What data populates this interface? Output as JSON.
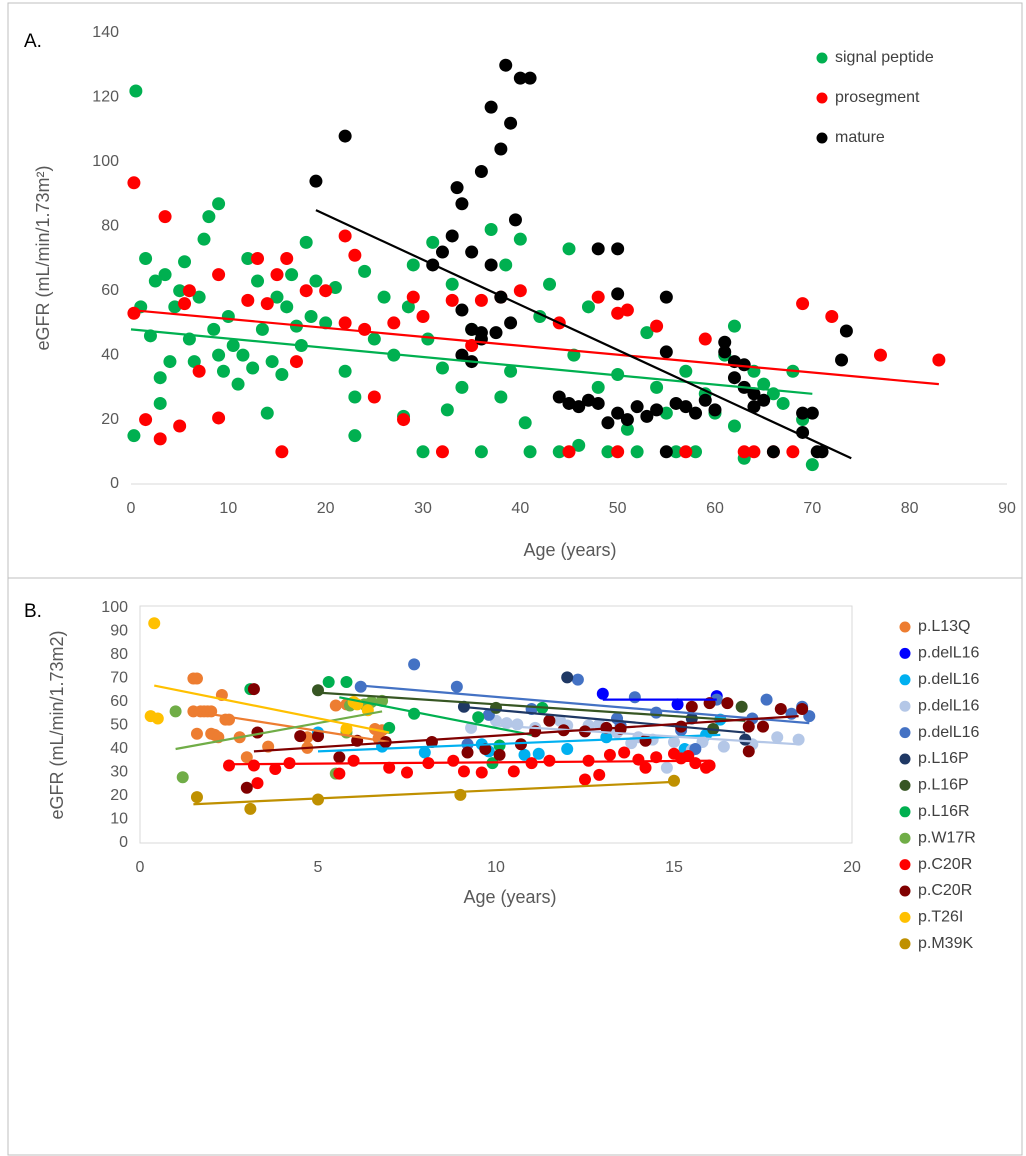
{
  "chart_data": [
    {
      "type": "scatter",
      "panel_label": "A.",
      "xlabel": "Age (years)",
      "ylabel": "eGFR (mL/min/1.73m²)",
      "xlim": [
        0,
        90
      ],
      "ylim": [
        0,
        140
      ],
      "xticks": [
        0,
        10,
        20,
        30,
        40,
        50,
        60,
        70,
        80,
        90
      ],
      "yticks": [
        0,
        20,
        40,
        60,
        80,
        100,
        120,
        140
      ],
      "grid": false,
      "legend": "upper right",
      "series": [
        {
          "name": "signal peptide",
          "color": "#00b050",
          "x": [
            0.5,
            0.3,
            1,
            1.5,
            2,
            2.5,
            3,
            3,
            3.5,
            4,
            4.5,
            5,
            5.5,
            6,
            6.5,
            7,
            7.5,
            8,
            8.5,
            9,
            9,
            9.5,
            10,
            10.5,
            11,
            11.5,
            12,
            12.5,
            13,
            13.5,
            14,
            14.5,
            15,
            15.5,
            16,
            16.5,
            17,
            17.5,
            18,
            18.5,
            19,
            20,
            21,
            22,
            23,
            23,
            24,
            25,
            26,
            27,
            28,
            28.5,
            29,
            30,
            30.5,
            31,
            32,
            32.5,
            33,
            34,
            35,
            36,
            37,
            38,
            38.5,
            39,
            40,
            40.5,
            41,
            42,
            43,
            44,
            45,
            45.5,
            46,
            47,
            48,
            49,
            50,
            51,
            52,
            53,
            54,
            55,
            56,
            57,
            58,
            59,
            60,
            61,
            62,
            62,
            63,
            64,
            65,
            66,
            67,
            68,
            69,
            70
          ],
          "y": [
            122,
            15,
            55,
            70,
            46,
            63,
            33,
            25,
            65,
            38,
            55,
            60,
            69,
            45,
            38,
            58,
            76,
            83,
            48,
            87,
            40,
            35,
            52,
            43,
            31,
            40,
            70,
            36,
            63,
            48,
            22,
            38,
            58,
            34,
            55,
            65,
            49,
            43,
            75,
            52,
            63,
            50,
            61,
            35,
            27,
            15,
            66,
            45,
            58,
            40,
            21,
            55,
            68,
            10,
            45,
            75,
            36,
            23,
            62,
            30,
            48,
            10,
            79,
            27,
            68,
            35,
            76,
            19,
            10,
            52,
            62,
            10,
            73,
            40,
            12,
            55,
            30,
            10,
            34,
            17,
            10,
            47,
            30,
            22,
            10,
            35,
            10,
            28,
            22,
            40,
            49,
            18,
            8,
            35,
            31,
            28,
            25,
            35,
            20,
            6
          ],
          "trendline": {
            "x": [
              0,
              70
            ],
            "y": [
              48,
              28
            ]
          }
        },
        {
          "name": "prosegment",
          "color": "#ff0000",
          "x": [
            0.3,
            0.3,
            1.5,
            3,
            3.5,
            5,
            5.5,
            6,
            7,
            9,
            9,
            12,
            13,
            14,
            15,
            15.5,
            16,
            17,
            18,
            20,
            22,
            22,
            23,
            24,
            25,
            27,
            28,
            29,
            30,
            32,
            33,
            35,
            36,
            38,
            40,
            44,
            45,
            48,
            50,
            50,
            51,
            54,
            57,
            59,
            63,
            64,
            66,
            68,
            69,
            72,
            77,
            83
          ],
          "y": [
            93.5,
            53,
            20,
            14,
            83,
            18,
            56,
            60,
            35,
            65,
            20.5,
            57,
            70,
            56,
            65,
            10,
            70,
            38,
            60,
            60,
            50,
            77,
            71,
            48,
            27,
            50,
            20,
            58,
            52,
            10,
            57,
            43,
            57,
            58,
            60,
            50,
            10,
            58,
            10,
            53,
            54,
            49,
            10,
            45,
            10,
            10,
            10,
            10,
            56,
            52,
            40,
            38.5
          ],
          "trendline": {
            "x": [
              0,
              83
            ],
            "y": [
              54,
              31
            ]
          }
        },
        {
          "name": "mature",
          "color": "#000000",
          "x": [
            19,
            22,
            31,
            32,
            33,
            33.5,
            34,
            34,
            35,
            35,
            36,
            36,
            37,
            37,
            38,
            38,
            38.5,
            39,
            39,
            39.5,
            40,
            41,
            36,
            37.5,
            34,
            35,
            44,
            45,
            46,
            47,
            48,
            48,
            49,
            50,
            50,
            50,
            51,
            52,
            53,
            54,
            55,
            55,
            55,
            56,
            57,
            58,
            59,
            60,
            61,
            61,
            62,
            62,
            63,
            63,
            64,
            64,
            65,
            66,
            69,
            69,
            70,
            70.5,
            71,
            73,
            73.5
          ],
          "y": [
            94,
            108,
            68,
            72,
            77,
            92,
            87,
            54,
            48,
            72,
            97,
            45,
            117,
            68,
            104,
            58,
            130,
            112,
            50,
            82,
            126,
            126,
            47,
            47,
            40,
            38,
            27,
            25,
            24,
            26,
            73,
            25,
            19,
            22,
            73,
            59,
            20,
            24,
            21,
            23,
            58,
            41,
            10,
            25,
            24,
            22,
            26,
            23,
            44,
            41,
            38,
            33,
            37,
            30,
            28,
            24,
            26,
            10,
            22,
            16,
            22,
            10,
            10,
            38.5,
            47.5
          ],
          "trendline": {
            "x": [
              19,
              74
            ],
            "y": [
              85,
              8
            ]
          }
        }
      ]
    },
    {
      "type": "scatter",
      "panel_label": "B.",
      "xlabel": "Age (years)",
      "ylabel": "eGFR (mL/min/1.73m2)",
      "xlim": [
        0,
        20
      ],
      "ylim": [
        0,
        100
      ],
      "xticks": [
        0,
        5,
        10,
        15,
        20
      ],
      "yticks": [
        0,
        10,
        20,
        30,
        40,
        50,
        60,
        70,
        80,
        90,
        100
      ],
      "grid": false,
      "legend": "right",
      "series": [
        {
          "name": "p.L13Q",
          "color": "#ed7d31",
          "x": [
            1.5,
            1.6,
            1.5,
            1.7,
            1.8,
            1.9,
            2.0,
            1.6,
            2.0,
            2.1,
            2.4,
            2.5,
            2.3,
            2.2,
            2.8,
            3.0,
            3.6,
            4.7,
            4.7,
            5.5,
            5.8,
            6.6,
            6.8,
            6.7
          ],
          "y": [
            70,
            70,
            56,
            56,
            56,
            56,
            56,
            46.5,
            46.5,
            46,
            52.5,
            52.5,
            63,
            45,
            45,
            36.5,
            41,
            45,
            40.5,
            58.5,
            59,
            48.5,
            48,
            44.5
          ],
          "trendline": {
            "x": [
              1.5,
              7
            ],
            "y": [
              56,
              43
            ]
          }
        },
        {
          "name": "p.delL16",
          "color": "#0000ff",
          "x": [
            13.0,
            15.1,
            16.2
          ],
          "y": [
            63.5,
            59,
            62.5
          ],
          "trendline": {
            "x": [
              13,
              16.2
            ],
            "y": [
              61,
              61
            ]
          }
        },
        {
          "name": "p.delL16",
          "color": "#00b0f0",
          "x": [
            5,
            6.8,
            8,
            9.6,
            9.8,
            10.8,
            11.2,
            12,
            13.1,
            15.3,
            15.9,
            16.3
          ],
          "y": [
            47,
            41,
            38.5,
            42,
            39,
            37.5,
            38,
            40,
            45,
            40,
            46,
            52.5
          ],
          "trendline": {
            "x": [
              5,
              16.3
            ],
            "y": [
              39,
              46
            ]
          }
        },
        {
          "name": "p.delL16",
          "color": "#b4c7e7",
          "x": [
            9.3,
            10,
            10.3,
            10.6,
            11.1,
            11.8,
            12,
            12.6,
            12.9,
            13.4,
            13.8,
            14,
            14.4,
            14.8,
            15,
            15.5,
            15.8,
            16.4,
            17.2,
            17.9,
            18.5
          ],
          "y": [
            49,
            52,
            51,
            50.5,
            49,
            52,
            50,
            50,
            50.5,
            47,
            42.5,
            45,
            44,
            32,
            43,
            39.5,
            43,
            41,
            42,
            45,
            44
          ],
          "trendline": {
            "x": [
              10,
              18.5
            ],
            "y": [
              50,
              42
            ]
          }
        },
        {
          "name": "p.delL16",
          "color": "#4472c4",
          "x": [
            6.2,
            7.7,
            8.9,
            9.2,
            9.8,
            11,
            12.3,
            13.4,
            13.5,
            13.9,
            14.5,
            15.2,
            15.6,
            16.2,
            17.2,
            17.6,
            18.3,
            18.6,
            18.8
          ],
          "y": [
            66.5,
            76,
            66.5,
            42,
            54.5,
            57,
            69.5,
            53,
            50,
            62,
            55.5,
            48,
            40,
            61,
            53,
            61,
            55,
            58,
            54
          ],
          "trendline": {
            "x": [
              6.2,
              18.8
            ],
            "y": [
              67,
              51
            ]
          }
        },
        {
          "name": "p.L16P",
          "color": "#1f3864",
          "x": [
            9.1,
            12,
            15.5,
            17
          ],
          "y": [
            58,
            70.5,
            53,
            44
          ],
          "trendline": {
            "x": [
              9,
              17
            ],
            "y": [
              58,
              47
            ]
          }
        },
        {
          "name": "p.L16P",
          "color": "#375623",
          "x": [
            5,
            10,
            16.1,
            16.9
          ],
          "y": [
            65,
            57.5,
            48.5,
            58
          ],
          "trendline": {
            "x": [
              5,
              17
            ],
            "y": [
              64,
              52
            ]
          }
        },
        {
          "name": "p.L16R",
          "color": "#00b050",
          "x": [
            3.1,
            5.3,
            5.8,
            7.0,
            7.7,
            9.5,
            9.9,
            10.1,
            11.3
          ],
          "y": [
            65.5,
            68.5,
            68.5,
            49,
            55,
            53.5,
            34,
            41.5,
            57.5
          ],
          "trendline": {
            "x": [
              5.6,
              11
            ],
            "y": [
              62,
              46
            ]
          }
        },
        {
          "name": "p.W17R",
          "color": "#70ad47",
          "x": [
            1.0,
            1.2,
            5.5,
            5.8,
            5.9,
            6.3,
            6.5,
            6.8
          ],
          "y": [
            56,
            28,
            29.5,
            47,
            58.5,
            59,
            60,
            60.5
          ],
          "trendline": {
            "x": [
              1,
              6.8
            ],
            "y": [
              40,
              56
            ]
          }
        },
        {
          "name": "p.C20R",
          "color": "#ff0000",
          "x": [
            2.5,
            3.2,
            3.3,
            3.8,
            4.2,
            5.6,
            6.0,
            7.0,
            7.5,
            8.1,
            8.8,
            9.1,
            9.6,
            10.5,
            11.0,
            11.5,
            12.5,
            12.6,
            12.9,
            13.2,
            13.6,
            14,
            14.2,
            14.5,
            15.0,
            15.2,
            15.4,
            15.6,
            15.9,
            16
          ],
          "y": [
            33,
            33,
            25.5,
            31.5,
            34,
            29.5,
            35,
            32,
            30,
            34,
            35,
            30.5,
            30,
            30.5,
            34,
            35,
            27,
            35,
            29,
            37.5,
            38.5,
            35.5,
            32,
            36.5,
            38,
            36,
            37,
            34,
            32,
            33
          ],
          "trendline": {
            "x": [
              2.5,
              16
            ],
            "y": [
              33.5,
              35
            ]
          }
        },
        {
          "name": "p.C20R",
          "color": "#800000",
          "x": [
            3.0,
            3.2,
            3.3,
            4.5,
            5.0,
            5.6,
            6.1,
            6.9,
            8.2,
            9.2,
            9.7,
            10.1,
            10.7,
            11.1,
            11.5,
            11.9,
            12.5,
            13.1,
            13.5,
            14.2,
            15.2,
            15.5,
            16,
            16.5,
            17.1,
            17.1,
            17.5,
            18,
            18.6
          ],
          "y": [
            23.5,
            65.5,
            47,
            45.5,
            45.5,
            36.5,
            43.5,
            43,
            43,
            38.5,
            40,
            37.5,
            42,
            47.5,
            52,
            48,
            47.5,
            49,
            48.5,
            43.5,
            49.5,
            58,
            59.5,
            59.5,
            39,
            49.5,
            49.5,
            57,
            57
          ],
          "trendline": {
            "x": [
              3.2,
              18.5
            ],
            "y": [
              39,
              54
            ]
          }
        },
        {
          "name": "p.T26I",
          "color": "#ffc000",
          "x": [
            0.4,
            0.3,
            0.5,
            6.0,
            5.8,
            6.4,
            6.1
          ],
          "y": [
            93.5,
            54,
            53,
            60,
            48.5,
            56.5,
            59
          ],
          "trendline": {
            "x": [
              0.4,
              7
            ],
            "y": [
              67,
              47
            ]
          }
        },
        {
          "name": "p.M39K",
          "color": "#bf9000",
          "x": [
            1.6,
            3.1,
            5.0,
            9.0,
            15
          ],
          "y": [
            19.5,
            14.5,
            18.5,
            20.5,
            26.5
          ],
          "trendline": {
            "x": [
              1.5,
              15
            ],
            "y": [
              16.5,
              26
            ]
          }
        }
      ]
    }
  ]
}
